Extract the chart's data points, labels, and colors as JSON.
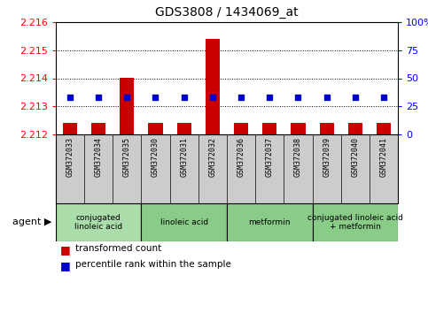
{
  "title": "GDS3808 / 1434069_at",
  "samples": [
    "GSM372033",
    "GSM372034",
    "GSM372035",
    "GSM372030",
    "GSM372031",
    "GSM372032",
    "GSM372036",
    "GSM372037",
    "GSM372038",
    "GSM372039",
    "GSM372040",
    "GSM372041"
  ],
  "transformed_count": [
    2.2124,
    2.2124,
    2.214,
    2.2124,
    2.2124,
    2.2154,
    2.2124,
    2.2124,
    2.2124,
    2.2124,
    2.2124,
    2.2124
  ],
  "percentile_rank": [
    33,
    33,
    33,
    33,
    33,
    33,
    33,
    33,
    33,
    33,
    33,
    33
  ],
  "ylim_left": [
    2.212,
    2.216
  ],
  "ylim_right": [
    0,
    100
  ],
  "yticks_left": [
    2.212,
    2.213,
    2.214,
    2.215,
    2.216
  ],
  "yticks_right": [
    0,
    25,
    50,
    75,
    100
  ],
  "ytick_labels_right": [
    "0",
    "25",
    "50",
    "75",
    "100%"
  ],
  "bar_color": "#cc0000",
  "dot_color": "#0000cc",
  "agent_groups": [
    {
      "label": "conjugated\nlinoleic acid",
      "start": 0,
      "end": 3,
      "color": "#aaddaa"
    },
    {
      "label": "linoleic acid",
      "start": 3,
      "end": 6,
      "color": "#88cc88"
    },
    {
      "label": "metformin",
      "start": 6,
      "end": 9,
      "color": "#88cc88"
    },
    {
      "label": "conjugated linoleic acid\n+ metformin",
      "start": 9,
      "end": 12,
      "color": "#88cc88"
    }
  ],
  "bar_bottom": 2.212,
  "background_color": "#ffffff",
  "sample_area_color": "#cccccc",
  "plot_bg_color": "#ffffff",
  "figsize": [
    4.83,
    3.54
  ],
  "dpi": 100
}
